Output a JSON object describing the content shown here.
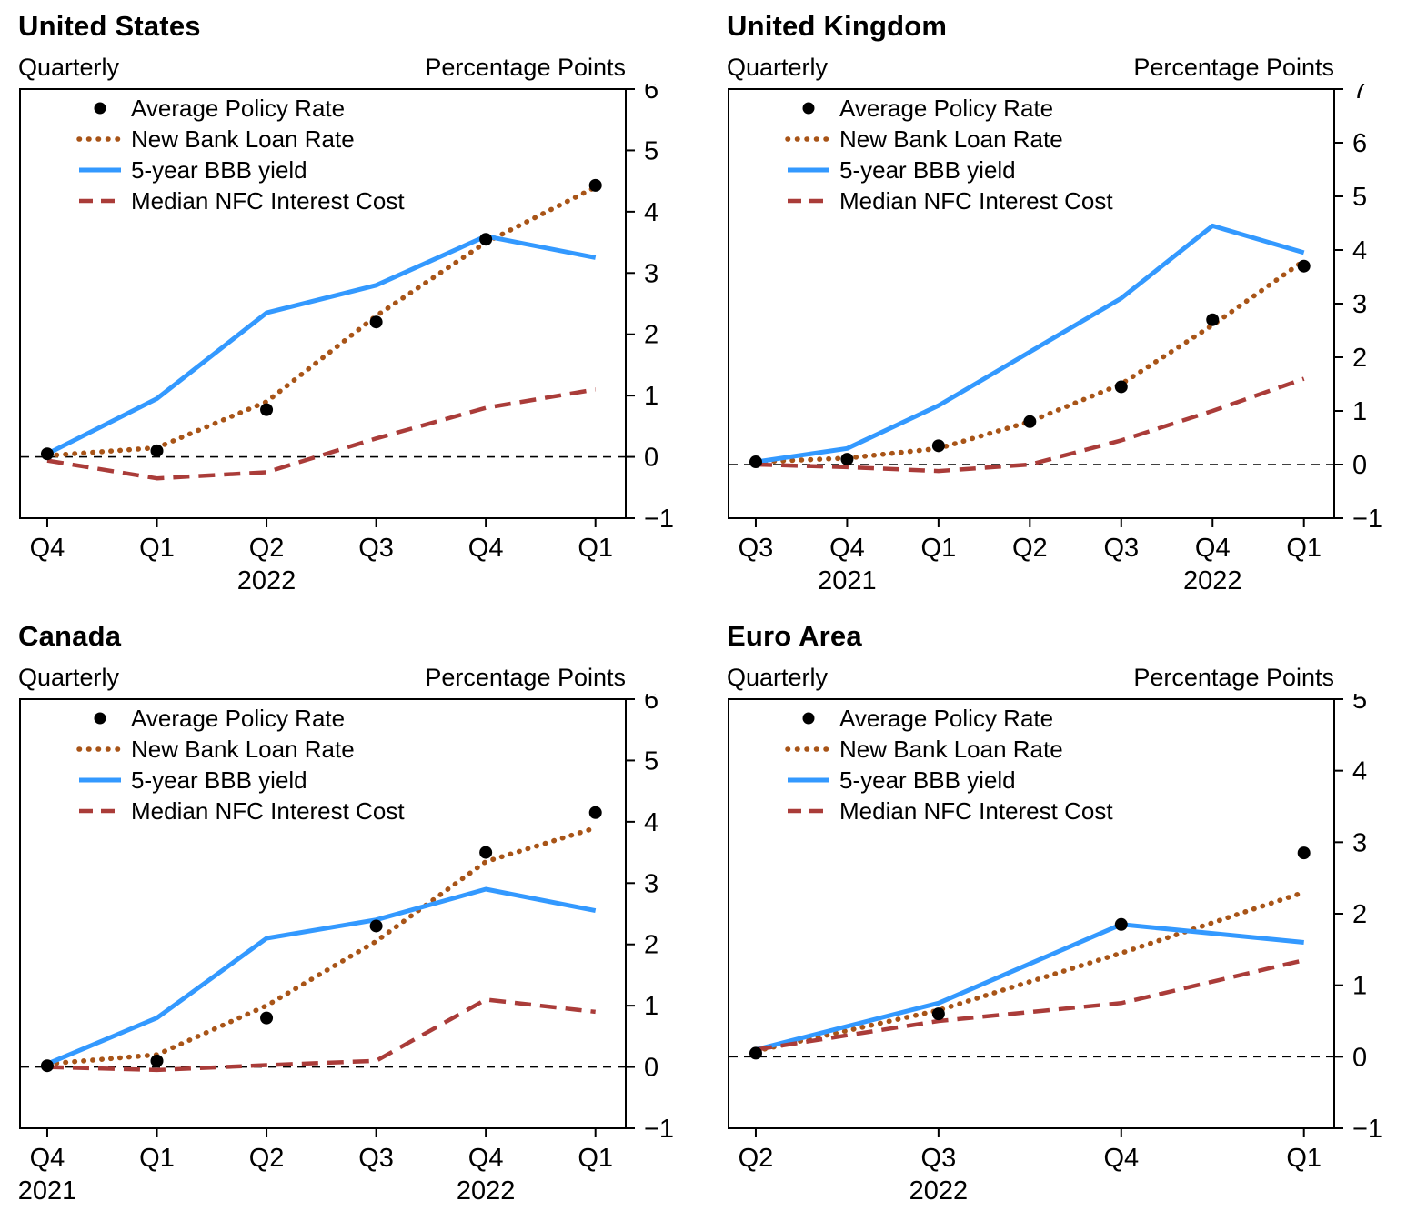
{
  "page": {
    "background": "#ffffff"
  },
  "chart_data": [
    {
      "type": "line",
      "title": "United States",
      "left_header": "Quarterly",
      "right_header": "Percentage Points",
      "x_labels": [
        "Q4",
        "Q1",
        "Q2",
        "Q3",
        "Q4",
        "Q1"
      ],
      "year_labels": [
        {
          "text": "2022",
          "tick_index": 2
        }
      ],
      "ylim": [
        -1,
        6
      ],
      "ytick_step": 1,
      "zero_line": true,
      "legend_position": "top-left-inside",
      "series": [
        {
          "name": "Average Policy Rate",
          "style": "dot",
          "color": "#000000",
          "values": [
            0.05,
            0.1,
            0.77,
            2.2,
            3.55,
            4.43
          ]
        },
        {
          "name": "New Bank Loan Rate",
          "style": "dotted",
          "color": "#A85417",
          "values": [
            0.02,
            0.15,
            0.9,
            2.3,
            3.5,
            4.4
          ]
        },
        {
          "name": "5-year BBB yield",
          "style": "solid",
          "color": "#3399FF",
          "values": [
            0.05,
            0.95,
            2.35,
            2.8,
            3.6,
            3.25
          ]
        },
        {
          "name": "Median NFC Interest Cost",
          "style": "dashed",
          "color": "#AA3C39",
          "values": [
            -0.06,
            -0.35,
            -0.25,
            0.3,
            0.8,
            1.1
          ]
        }
      ]
    },
    {
      "type": "line",
      "title": "United Kingdom",
      "left_header": "Quarterly",
      "right_header": "Percentage Points",
      "x_labels": [
        "Q3",
        "Q4",
        "Q1",
        "Q2",
        "Q3",
        "Q4",
        "Q1"
      ],
      "year_labels": [
        {
          "text": "2021",
          "tick_index": 1
        },
        {
          "text": "2022",
          "tick_index": 5
        }
      ],
      "ylim": [
        -1,
        7
      ],
      "ytick_step": 1,
      "zero_line": true,
      "legend_position": "top-left-inside",
      "series": [
        {
          "name": "Average Policy Rate",
          "style": "dot",
          "color": "#000000",
          "values": [
            0.05,
            0.1,
            0.35,
            0.8,
            1.45,
            2.7,
            3.7
          ]
        },
        {
          "name": "New Bank Loan Rate",
          "style": "dotted",
          "color": "#A85417",
          "values": [
            0.05,
            0.12,
            0.3,
            0.8,
            1.5,
            2.6,
            3.8
          ]
        },
        {
          "name": "5-year BBB yield",
          "style": "solid",
          "color": "#3399FF",
          "values": [
            0.05,
            0.3,
            1.1,
            2.1,
            3.1,
            4.45,
            3.95
          ]
        },
        {
          "name": "Median NFC Interest Cost",
          "style": "dashed",
          "color": "#AA3C39",
          "values": [
            0.0,
            -0.05,
            -0.12,
            0.0,
            0.45,
            1.0,
            1.6
          ]
        }
      ]
    },
    {
      "type": "line",
      "title": "Canada",
      "left_header": "Quarterly",
      "right_header": "Percentage Points",
      "x_labels": [
        "Q4",
        "Q1",
        "Q2",
        "Q3",
        "Q4",
        "Q1"
      ],
      "year_labels": [
        {
          "text": "2021",
          "tick_index": 0
        },
        {
          "text": "2022",
          "tick_index": 4
        }
      ],
      "ylim": [
        -1,
        6
      ],
      "ytick_step": 1,
      "zero_line": true,
      "legend_position": "top-left-inside",
      "series": [
        {
          "name": "Average Policy Rate",
          "style": "dot",
          "color": "#000000",
          "values": [
            0.02,
            0.1,
            0.8,
            2.3,
            3.5,
            4.15
          ]
        },
        {
          "name": "New Bank Loan Rate",
          "style": "dotted",
          "color": "#A85417",
          "values": [
            0.05,
            0.2,
            1.0,
            2.05,
            3.35,
            3.9
          ]
        },
        {
          "name": "5-year BBB yield",
          "style": "solid",
          "color": "#3399FF",
          "values": [
            0.05,
            0.8,
            2.1,
            2.4,
            2.9,
            2.55
          ]
        },
        {
          "name": "Median NFC Interest Cost",
          "style": "dashed",
          "color": "#AA3C39",
          "values": [
            0.0,
            -0.05,
            0.03,
            0.1,
            1.1,
            0.9
          ]
        }
      ]
    },
    {
      "type": "line",
      "title": "Euro Area",
      "left_header": "Quarterly",
      "right_header": "Percentage Points",
      "x_labels": [
        "Q2",
        "Q3",
        "Q4",
        "Q1"
      ],
      "year_labels": [
        {
          "text": "2022",
          "tick_index": 1
        }
      ],
      "ylim": [
        -1,
        5
      ],
      "ytick_step": 1,
      "zero_line": true,
      "legend_position": "top-left-inside",
      "series": [
        {
          "name": "Average Policy Rate",
          "style": "dot",
          "color": "#000000",
          "values": [
            0.05,
            0.6,
            1.85,
            2.85
          ]
        },
        {
          "name": "New Bank Loan Rate",
          "style": "dotted",
          "color": "#A85417",
          "values": [
            0.08,
            0.65,
            1.45,
            2.3
          ]
        },
        {
          "name": "5-year BBB yield",
          "style": "solid",
          "color": "#3399FF",
          "values": [
            0.1,
            0.75,
            1.85,
            1.6
          ]
        },
        {
          "name": "Median NFC Interest Cost",
          "style": "dashed",
          "color": "#AA3C39",
          "values": [
            0.1,
            0.5,
            0.75,
            1.35
          ]
        }
      ]
    }
  ]
}
